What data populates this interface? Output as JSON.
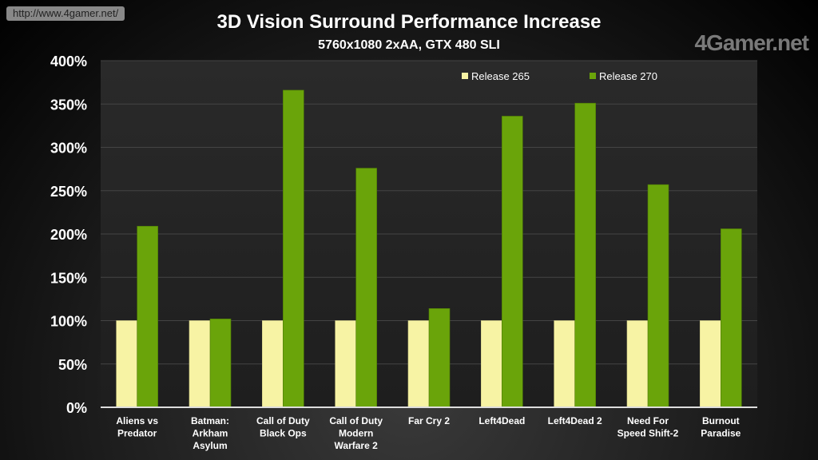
{
  "chart_data": {
    "type": "bar",
    "title": "3D Vision Surround Performance Increase",
    "subtitle": "5760x1080 2xAA, GTX 480 SLI",
    "categories": [
      [
        "Aliens vs",
        "Predator"
      ],
      [
        "Batman:",
        "Arkham",
        "Asylum"
      ],
      [
        "Call of Duty",
        "Black Ops"
      ],
      [
        "Call of Duty",
        "Modern",
        "Warfare 2"
      ],
      [
        "Far Cry 2"
      ],
      [
        "Left4Dead"
      ],
      [
        "Left4Dead 2"
      ],
      [
        "Need For",
        "Speed Shift-2"
      ],
      [
        "Burnout",
        "Paradise"
      ]
    ],
    "series": [
      {
        "name": "Release 265",
        "color": "#f7f3a4",
        "values": [
          100,
          100,
          100,
          100,
          100,
          100,
          100,
          100,
          100
        ]
      },
      {
        "name": "Release 270",
        "color": "#6aa40a",
        "values": [
          209,
          102,
          366,
          276,
          114,
          336,
          351,
          257,
          206
        ]
      }
    ],
    "ylim": [
      0,
      400
    ],
    "yticks": [
      "0%",
      "50%",
      "100%",
      "150%",
      "200%",
      "250%",
      "300%",
      "350%",
      "400%"
    ],
    "grid": true,
    "legend": "top-right"
  },
  "watermark": {
    "logo": "4Gamer.net",
    "url": "http://www.4gamer.net/"
  }
}
